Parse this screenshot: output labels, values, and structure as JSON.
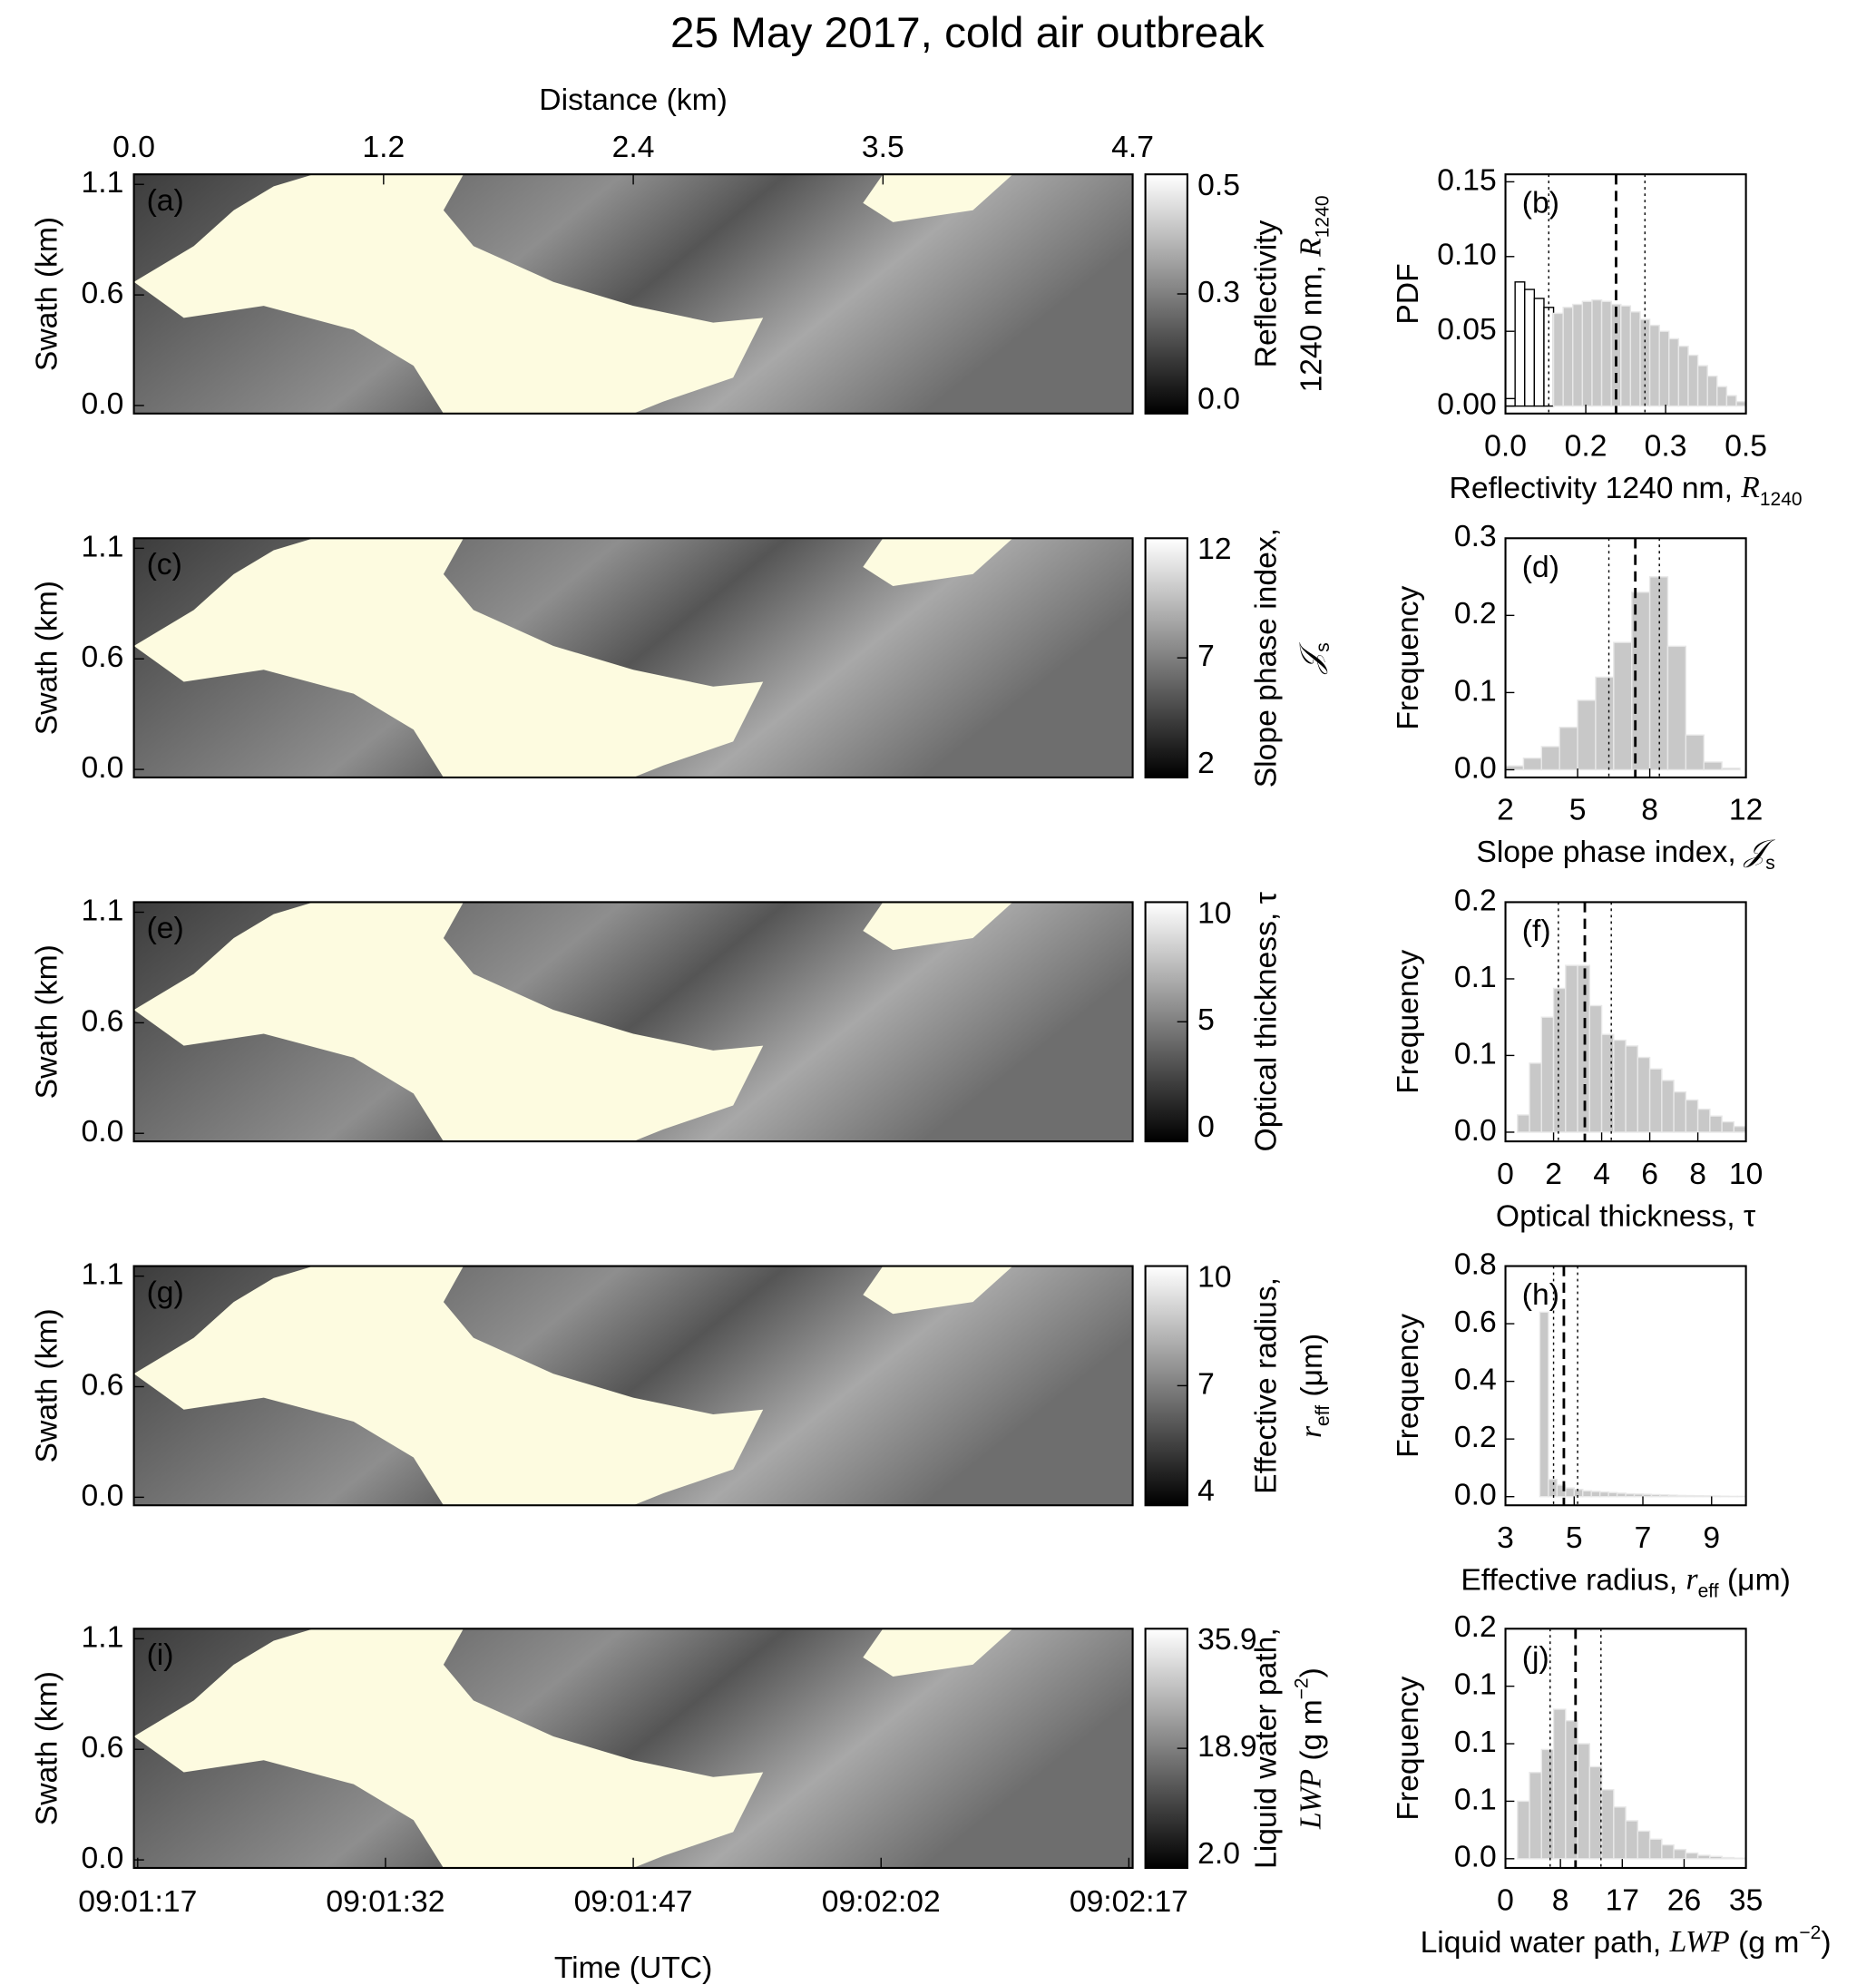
{
  "title": "25 May 2017, cold air outbreak",
  "chart_data": [
    {
      "type": "image",
      "label": "(a)",
      "ylabel": "Swath (km)",
      "ylim": [
        -0.04,
        1.15
      ],
      "yticks": [
        {
          "value": 0,
          "label": "0.0"
        },
        {
          "value": 0.55,
          "label": "0.6"
        },
        1.1
      ],
      "top_xlabel": "Distance (km)",
      "xlim": [
        0,
        4.7
      ],
      "xticks": [
        {
          "value": 0,
          "label": "0.0"
        },
        {
          "value": 1.175,
          "label": "1.2"
        },
        {
          "value": 2.35,
          "label": "2.4"
        },
        {
          "value": 3.525,
          "label": "3.5"
        },
        4.7
      ],
      "colorbar": {
        "label": [
          [
            {
              "text": "Reflectivity"
            }
          ],
          [
            {
              "text": "1240 nm, "
            },
            {
              "text": "R",
              "style": "italic"
            },
            {
              "text": "1240",
              "style": "sub"
            }
          ]
        ],
        "lim": [
          0,
          0.5
        ],
        "ticks": [
          {
            "value": 0,
            "label": "0.0"
          },
          {
            "value": 0.25,
            "label": "0.3"
          },
          0.5
        ]
      }
    },
    {
      "type": "histogram",
      "label": "(b)",
      "ylabel": "PDF",
      "xlabel": [
        {
          "text": "Reflectivity 1240 nm, "
        },
        {
          "text": "R",
          "style": "italic"
        },
        {
          "text": "1240",
          "style": "sub"
        }
      ],
      "xlim": [
        0,
        0.5
      ],
      "xticks": [
        {
          "value": 0,
          "label": "0.0"
        },
        {
          "value": 0.167,
          "label": "0.2"
        },
        {
          "value": 0.333,
          "label": "0.3"
        },
        0.5
      ],
      "ylim": [
        -0.005,
        0.155
      ],
      "yticks": [
        {
          "value": 0,
          "label": "0.00"
        },
        0.05,
        {
          "value": 0.1,
          "label": "0.10"
        },
        0.15
      ],
      "bins": [
        0,
        0.02,
        0.04,
        0.06,
        0.08,
        0.1,
        0.12,
        0.14,
        0.16,
        0.18,
        0.2,
        0.22,
        0.24,
        0.26,
        0.28,
        0.3,
        0.32,
        0.34,
        0.36,
        0.38,
        0.4,
        0.42,
        0.44,
        0.46,
        0.48,
        0.5
      ],
      "values": [
        0.005,
        0.083,
        0.078,
        0.072,
        0.066,
        0.062,
        0.066,
        0.068,
        0.07,
        0.071,
        0.07,
        0.068,
        0.067,
        0.063,
        0.058,
        0.054,
        0.05,
        0.045,
        0.04,
        0.034,
        0.027,
        0.02,
        0.013,
        0.007,
        0.003
      ],
      "color": "#c8c8c8",
      "fill_from": 0.1,
      "dashed_line": 0.23,
      "dotted_lines": [
        0.09,
        0.29
      ]
    },
    {
      "type": "image",
      "label": "(c)",
      "ylabel": "Swath (km)",
      "ylim": [
        -0.04,
        1.15
      ],
      "yticks": [
        {
          "value": 0,
          "label": "0.0"
        },
        {
          "value": 0.55,
          "label": "0.6"
        },
        1.1
      ],
      "colorbar": {
        "label": [
          [
            {
              "text": "Slope phase index,"
            }
          ],
          [
            {
              "text": "𝒥",
              "style": "italic"
            },
            {
              "text": "s",
              "style": "sub"
            }
          ]
        ],
        "lim": [
          2,
          12
        ],
        "ticks": [
          2,
          7,
          12
        ]
      }
    },
    {
      "type": "histogram",
      "label": "(d)",
      "ylabel": "Frequency",
      "xlabel": [
        {
          "text": "Slope phase index, "
        },
        {
          "text": "𝒥",
          "style": "italic"
        },
        {
          "text": "s",
          "style": "sub"
        }
      ],
      "xlim": [
        2,
        12
      ],
      "xticks": [
        2,
        5,
        8,
        12
      ],
      "ylim": [
        -0.01,
        0.3
      ],
      "yticks": [
        {
          "value": 0,
          "label": "0.0"
        },
        0.1,
        0.2,
        0.3
      ],
      "bins": [
        2,
        2.75,
        3.5,
        4.25,
        5,
        5.75,
        6.5,
        7.25,
        8,
        8.75,
        9.5,
        10.25,
        11,
        11.75
      ],
      "values": [
        0.005,
        0.015,
        0.03,
        0.055,
        0.09,
        0.12,
        0.165,
        0.23,
        0.25,
        0.16,
        0.045,
        0.01,
        0.002
      ],
      "color": "#c8c8c8",
      "dashed_line": 7.4,
      "dotted_lines": [
        6.3,
        8.4
      ]
    },
    {
      "type": "image",
      "label": "(e)",
      "ylabel": "Swath (km)",
      "ylim": [
        -0.04,
        1.15
      ],
      "yticks": [
        {
          "value": 0,
          "label": "0.0"
        },
        {
          "value": 0.55,
          "label": "0.6"
        },
        1.1
      ],
      "colorbar": {
        "label": [
          [
            {
              "text": "Optical thickness, τ"
            }
          ]
        ],
        "lim": [
          0,
          10
        ],
        "ticks": [
          0,
          5,
          10
        ]
      }
    },
    {
      "type": "histogram",
      "label": "(f)",
      "ylabel": "Frequency",
      "xlabel": [
        {
          "text": "Optical thickness, τ"
        }
      ],
      "xlim": [
        0,
        10
      ],
      "xticks": [
        0,
        2,
        4,
        6,
        8,
        10
      ],
      "ylim": [
        -0.008,
        0.2
      ],
      "yticks": [
        {
          "value": 0,
          "label": "0.0"
        },
        {
          "value": 0.0667,
          "label": "0.1"
        },
        {
          "value": 0.1333,
          "label": "0.1"
        },
        0.2
      ],
      "bins": [
        0.5,
        1,
        1.5,
        2,
        2.5,
        3,
        3.5,
        4,
        4.5,
        5,
        5.5,
        6,
        6.5,
        7,
        7.5,
        8,
        8.5,
        9,
        9.5,
        10
      ],
      "values": [
        0.015,
        0.06,
        0.1,
        0.125,
        0.145,
        0.145,
        0.11,
        0.085,
        0.08,
        0.075,
        0.065,
        0.055,
        0.045,
        0.035,
        0.028,
        0.02,
        0.014,
        0.009,
        0.005
      ],
      "color": "#c8c8c8",
      "dashed_line": 3.3,
      "dotted_lines": [
        2.2,
        4.4
      ]
    },
    {
      "type": "image",
      "label": "(g)",
      "ylabel": "Swath (km)",
      "ylim": [
        -0.04,
        1.15
      ],
      "yticks": [
        {
          "value": 0,
          "label": "0.0"
        },
        {
          "value": 0.55,
          "label": "0.6"
        },
        1.1
      ],
      "colorbar": {
        "label": [
          [
            {
              "text": "Effective radius,"
            }
          ],
          [
            {
              "text": "r",
              "style": "italic"
            },
            {
              "text": "eff",
              "style": "sub"
            },
            {
              "text": " (μm)"
            }
          ]
        ],
        "lim": [
          4,
          10
        ],
        "ticks": [
          4,
          7,
          10
        ]
      }
    },
    {
      "type": "histogram",
      "label": "(h)",
      "ylabel": "Frequency",
      "xlabel": [
        {
          "text": "Effective radius, "
        },
        {
          "text": "r",
          "style": "italic"
        },
        {
          "text": "eff",
          "style": "sub"
        },
        {
          "text": "  (μm)"
        }
      ],
      "xlim": [
        3,
        10
      ],
      "xticks": [
        3,
        5,
        7,
        9
      ],
      "ylim": [
        -0.03,
        0.8
      ],
      "yticks": [
        {
          "value": 0,
          "label": "0.0"
        },
        0.2,
        0.4,
        0.6,
        0.8
      ],
      "bins": [
        4,
        4.25,
        4.5,
        4.75,
        5,
        5.25,
        5.5,
        5.75,
        6,
        6.25,
        6.5,
        6.75,
        7,
        7.25,
        7.5,
        7.75,
        8,
        8.25,
        8.5,
        8.75,
        9,
        9.25,
        9.5,
        9.75,
        10
      ],
      "values": [
        0.64,
        0.06,
        0.04,
        0.03,
        0.025,
        0.02,
        0.018,
        0.016,
        0.014,
        0.012,
        0.01,
        0.009,
        0.008,
        0.007,
        0.006,
        0.005,
        0.004,
        0.0035,
        0.003,
        0.0025,
        0.002,
        0.0015,
        0.001,
        0.001
      ],
      "color": "#c8c8c8",
      "dashed_line": 4.7,
      "dotted_lines": [
        4.4,
        5.1
      ]
    },
    {
      "type": "image",
      "label": "(i)",
      "ylabel": "Swath (km)",
      "ylim": [
        -0.04,
        1.15
      ],
      "yticks": [
        {
          "value": 0,
          "label": "0.0"
        },
        {
          "value": 0.55,
          "label": "0.6"
        },
        1.1
      ],
      "time_xlabel": "Time (UTC)",
      "time_ticks": [
        "09:01:17",
        "09:01:32",
        "09:01:47",
        "09:02:02",
        "09:02:17"
      ],
      "colorbar": {
        "label": [
          [
            {
              "text": "Liquid water path,"
            }
          ],
          [
            {
              "text": "LWP",
              "style": "italic"
            },
            {
              "text": " (g m"
            },
            {
              "text": "−2",
              "style": "sup"
            },
            {
              "text": ")"
            }
          ]
        ],
        "lim": [
          2,
          35.9
        ],
        "ticks": [
          {
            "value": 2,
            "label": "2.0"
          },
          {
            "value": 18.95,
            "label": "18.9"
          },
          35.9
        ]
      }
    },
    {
      "type": "histogram",
      "label": "(j)",
      "ylabel": "Frequency",
      "xlabel": [
        {
          "text": "Liquid water path, "
        },
        {
          "text": "LWP",
          "style": "italic"
        },
        {
          "text": " (g m"
        },
        {
          "text": "−2",
          "style": "sup"
        },
        {
          "text": ")"
        }
      ],
      "xlim": [
        0,
        35
      ],
      "xticks": [
        0,
        8,
        17,
        26,
        35
      ],
      "ylim": [
        -0.008,
        0.2
      ],
      "yticks": [
        {
          "value": 0,
          "label": "0.0"
        },
        {
          "value": 0.05,
          "label": "0.1"
        },
        0.1,
        {
          "value": 0.15,
          "label": "0.1"
        },
        0.2
      ],
      "bins": [
        0,
        1.75,
        3.5,
        5.25,
        7,
        8.75,
        10.5,
        12.25,
        14,
        15.75,
        17.5,
        19.25,
        21,
        22.75,
        24.5,
        26.25,
        28,
        29.75,
        31.5,
        33.25,
        35
      ],
      "values": [
        0,
        0.05,
        0.075,
        0.095,
        0.13,
        0.12,
        0.1,
        0.08,
        0.06,
        0.045,
        0.033,
        0.024,
        0.017,
        0.012,
        0.008,
        0.005,
        0.003,
        0.002,
        0.001,
        0.0005
      ],
      "color": "#c8c8c8",
      "dashed_line": 10.2,
      "dotted_lines": [
        6.5,
        13.9
      ]
    }
  ]
}
